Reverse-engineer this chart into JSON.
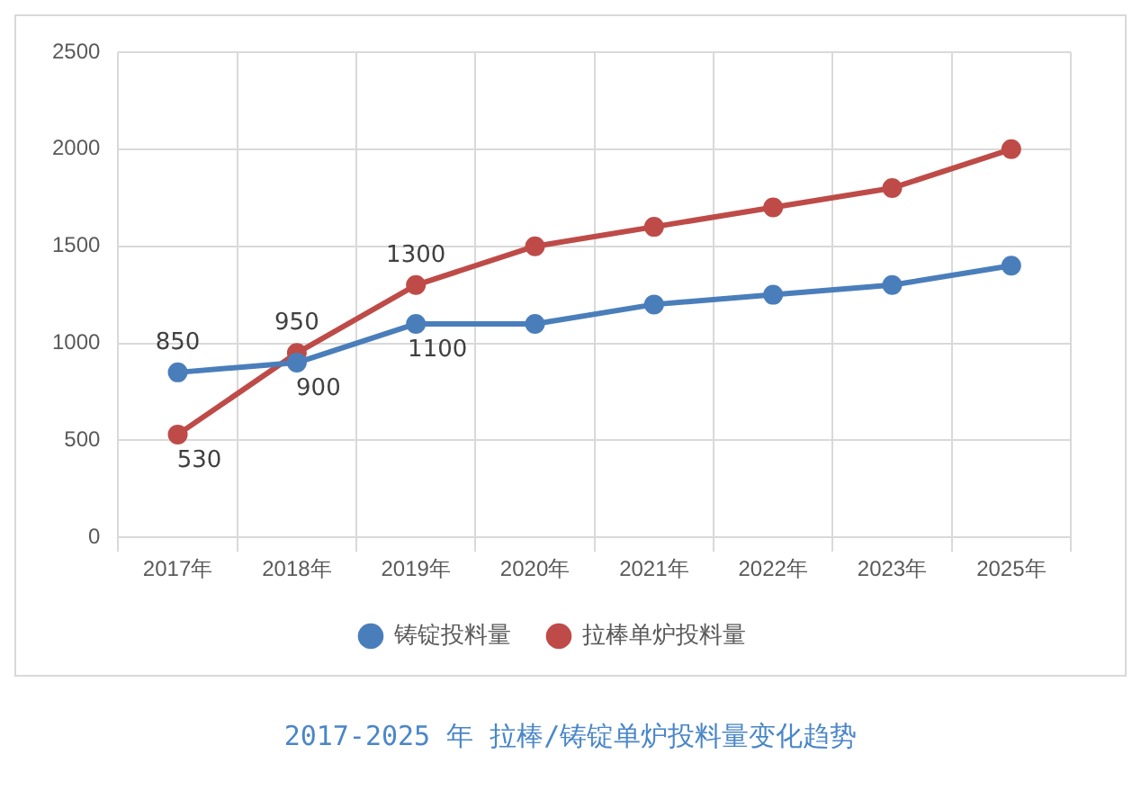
{
  "chart_data": {
    "type": "line",
    "title": "2017-2025 年  拉棒/铸锭单炉投料量变化趋势",
    "categories": [
      "2017年",
      "2018年",
      "2019年",
      "2020年",
      "2021年",
      "2022年",
      "2023年",
      "2025年"
    ],
    "series": [
      {
        "name": "铸锭投料量",
        "color": "#4a7ebb",
        "values": [
          850,
          900,
          1100,
          1100,
          1200,
          1250,
          1300,
          1400
        ],
        "value_labels": [
          "850",
          "900",
          "1100",
          null,
          null,
          null,
          null,
          null
        ]
      },
      {
        "name": "拉棒单炉投料量",
        "color": "#be4b48",
        "values": [
          530,
          950,
          1300,
          1500,
          1600,
          1700,
          1800,
          2000
        ],
        "value_labels": [
          "530",
          "950",
          "1300",
          null,
          null,
          null,
          null,
          null
        ]
      }
    ],
    "ylim": [
      0,
      2500
    ],
    "yticks": [
      0,
      500,
      1000,
      1500,
      2000,
      2500
    ],
    "grid": true,
    "legend": "bottom",
    "marker": "circle",
    "line_style": "solid"
  }
}
